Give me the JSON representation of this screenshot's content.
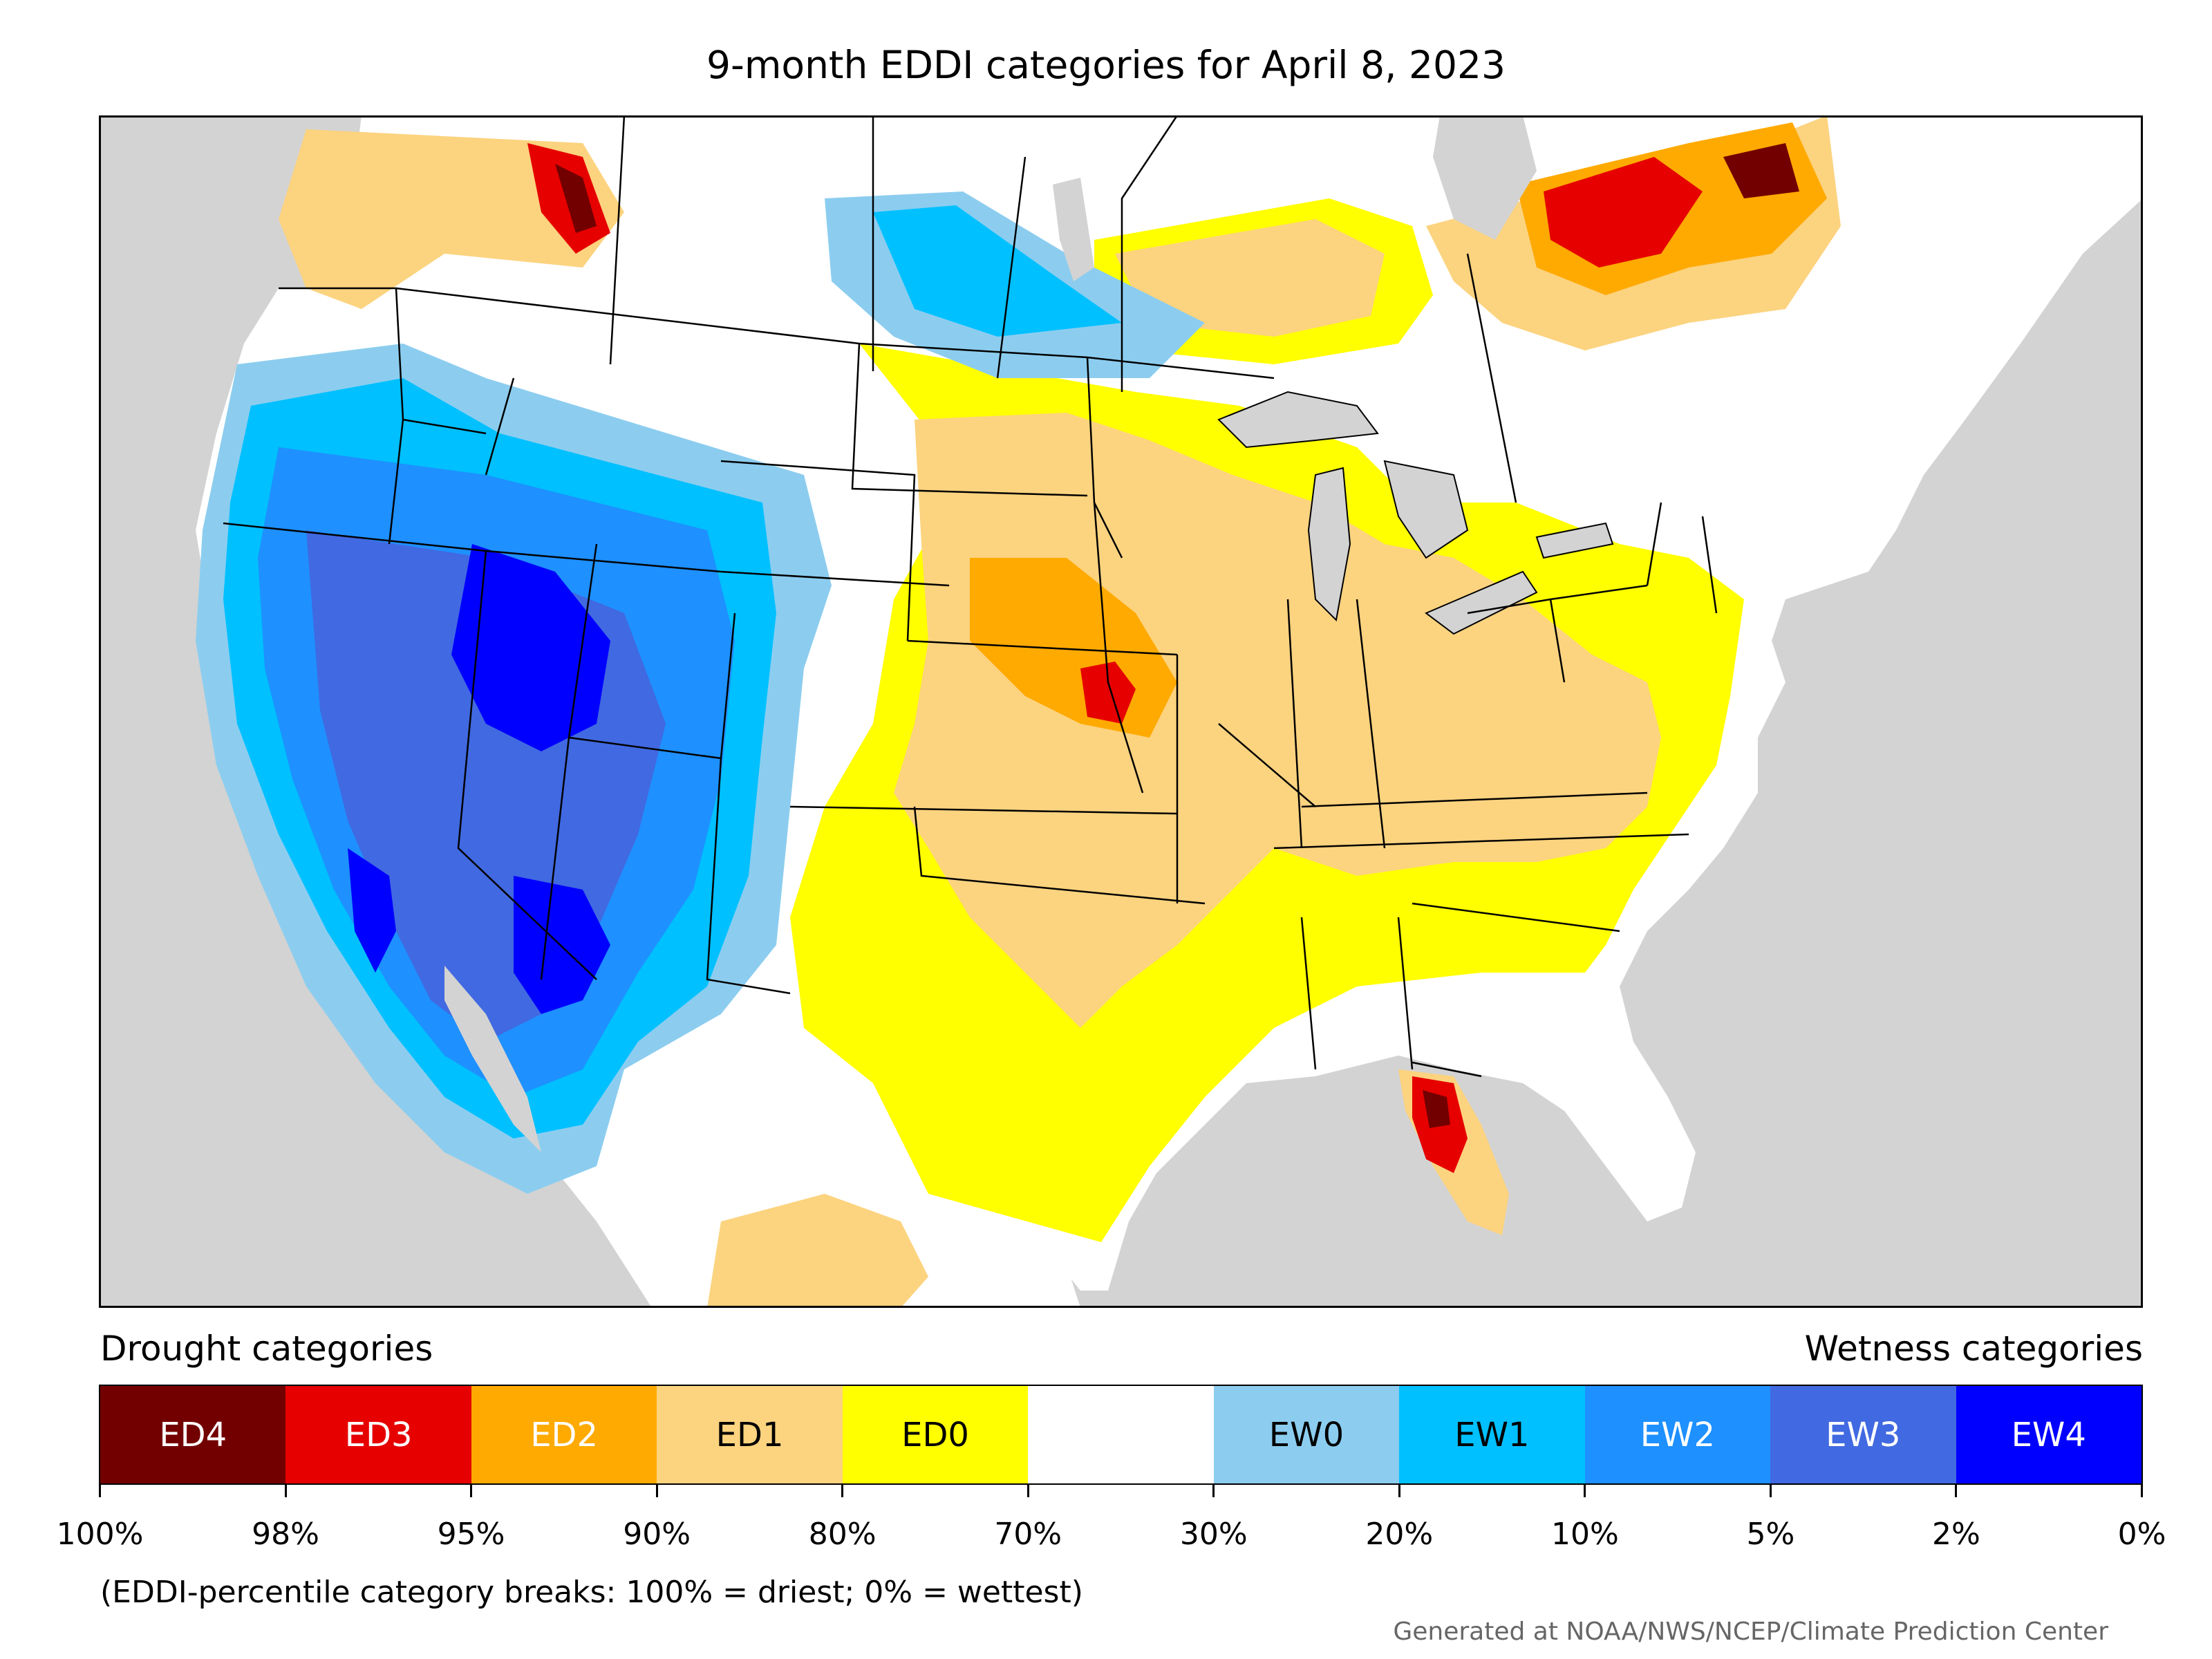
{
  "title": "9-month EDDI categories for April 8, 2023",
  "legend": {
    "drought_heading": "Drought categories",
    "wetness_heading": "Wetness categories",
    "categories": [
      {
        "label": "ED4",
        "color": "#730000",
        "text_color": "#ffffff"
      },
      {
        "label": "ED3",
        "color": "#e60000",
        "text_color": "#ffffff"
      },
      {
        "label": "ED2",
        "color": "#ffaa00",
        "text_color": "#ffffff"
      },
      {
        "label": "ED1",
        "color": "#fcd37f",
        "text_color": "#000000"
      },
      {
        "label": "ED0",
        "color": "#ffff00",
        "text_color": "#000000"
      },
      {
        "label": "",
        "color": "#ffffff",
        "text_color": "#000000"
      },
      {
        "label": "EW0",
        "color": "#8ccdef",
        "text_color": "#000000"
      },
      {
        "label": "EW1",
        "color": "#00c0ff",
        "text_color": "#000000"
      },
      {
        "label": "EW2",
        "color": "#1e90ff",
        "text_color": "#ffffff"
      },
      {
        "label": "EW3",
        "color": "#4169e1",
        "text_color": "#ffffff"
      },
      {
        "label": "EW4",
        "color": "#0000ff",
        "text_color": "#ffffff"
      }
    ],
    "breaks": [
      "100%",
      "98%",
      "95%",
      "90%",
      "80%",
      "70%",
      "30%",
      "20%",
      "10%",
      "5%",
      "2%",
      "0%"
    ]
  },
  "note": "(EDDI-percentile category breaks: 100% = driest; 0% = wettest)",
  "credit": "Generated at NOAA/NWS/NCEP/Climate Prediction Center",
  "colors": {
    "ocean": "#d3d3d3",
    "lake": "#d3d3d3",
    "land_default": "#ffffff"
  }
}
